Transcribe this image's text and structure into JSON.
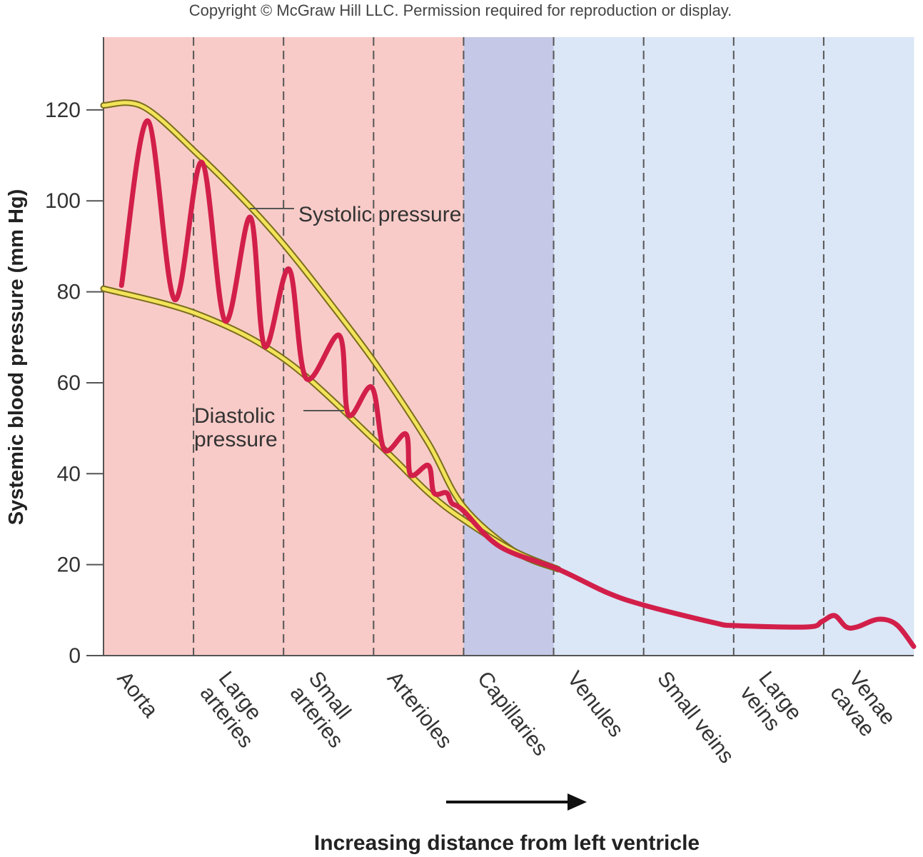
{
  "chart_data": {
    "type": "line",
    "copyright": "Copyright © McGraw Hill LLC. Permission required for reproduction or display.",
    "y_label": "Systemic blood pressure (mm Hg)",
    "x_label": "Increasing distance from left ventricle",
    "categories": [
      "Aorta",
      "Large\narteries",
      "Small\narteries",
      "Arterioles",
      "Capillaries",
      "Venules",
      "Small veins",
      "Large\nveins",
      "Venae\ncavae"
    ],
    "band_colors": [
      "#f8cbc8",
      "#f8cbc8",
      "#f8cbc8",
      "#f8cbc8",
      "#c5c8e6",
      "#dbe6f6",
      "#dbe6f6",
      "#dbe6f6",
      "#dbe6f6"
    ],
    "xlim": [
      0,
      9
    ],
    "ylim": [
      0,
      136
    ],
    "yticks": [
      0,
      20,
      40,
      60,
      80,
      100,
      120
    ],
    "series": [
      {
        "name": "Systolic pressure",
        "color": "#f3e35a",
        "x": [
          0,
          0.44,
          1.06,
          1.63,
          2.02,
          2.5,
          3.03,
          3.6,
          3.99,
          4.56,
          5.05
        ],
        "values": [
          121,
          120.7,
          110,
          98.7,
          90,
          78,
          64,
          47,
          33,
          23,
          19
        ]
      },
      {
        "name": "Diastolic\npressure",
        "color": "#f3e35a",
        "x": [
          0,
          1.06,
          2.02,
          3.03,
          3.6,
          3.99,
          4.56,
          5.05
        ],
        "values": [
          80.7,
          75,
          65,
          47,
          36,
          30,
          23,
          19
        ]
      },
      {
        "color": "#d21f4a",
        "x": [
          0.2,
          0.49,
          0.79,
          1.09,
          1.35,
          1.63,
          1.79,
          2.06,
          2.25,
          2.62,
          2.72,
          2.98,
          3.12,
          3.36,
          3.41,
          3.61,
          3.67,
          3.81,
          3.87,
          3.99,
          4.4,
          5.05,
          5.6,
          6.02,
          6.79,
          7.02,
          7.82,
          7.98,
          8.12,
          8.25,
          8.37,
          8.61,
          8.81,
          9.0
        ],
        "values": [
          81.4,
          117.6,
          78.3,
          108.5,
          73.6,
          96.4,
          68,
          85,
          61,
          70.4,
          53,
          59,
          45.3,
          48.7,
          39.8,
          41.8,
          35.8,
          35.8,
          33.5,
          32,
          24,
          19,
          13.8,
          11,
          7.2,
          6.6,
          6.3,
          7.5,
          8.8,
          6.3,
          6.3,
          8,
          6.8,
          2
        ]
      }
    ]
  }
}
